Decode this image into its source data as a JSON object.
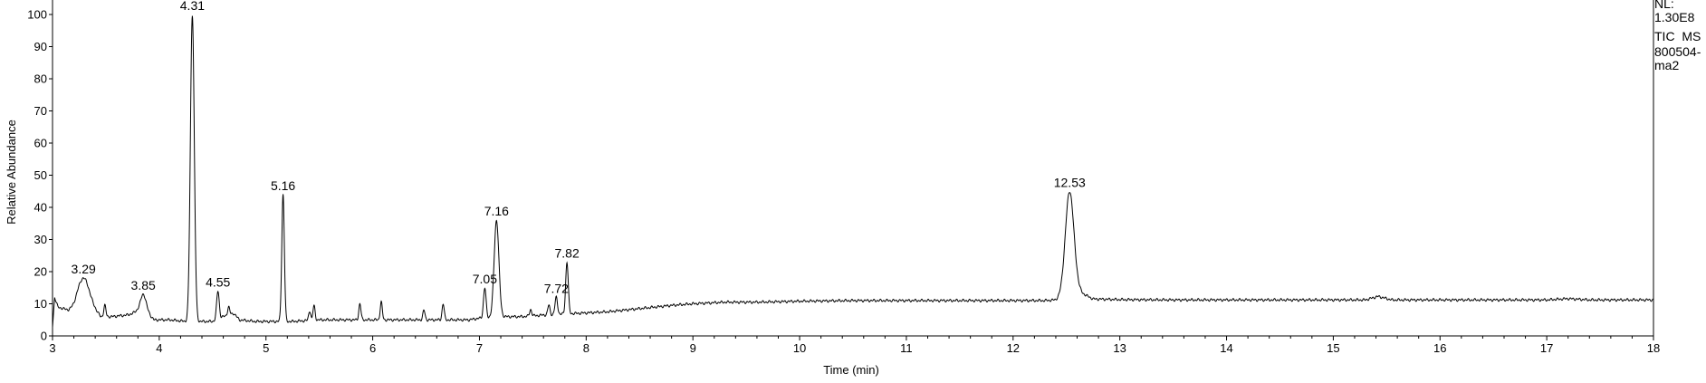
{
  "chart_data": {
    "type": "line",
    "xlabel": "Time (min)",
    "ylabel": "Relative Abundance",
    "xlim": [
      3,
      18
    ],
    "ylim": [
      0,
      100
    ],
    "x_ticks": [
      "3",
      "4",
      "5",
      "6",
      "7",
      "8",
      "9",
      "10",
      "11",
      "12",
      "13",
      "14",
      "15",
      "16",
      "17",
      "18"
    ],
    "y_ticks": [
      "0",
      "10",
      "20",
      "30",
      "40",
      "50",
      "60",
      "70",
      "80",
      "90",
      "100"
    ],
    "info_lines": [
      "NL:",
      "1.30E8",
      "TIC  MS",
      "800504-",
      "ma2"
    ],
    "baseline": [
      [
        3.0,
        3
      ],
      [
        3.02,
        12
      ],
      [
        3.05,
        9
      ],
      [
        3.1,
        8.5
      ],
      [
        3.15,
        8
      ],
      [
        3.2,
        8.5
      ],
      [
        3.25,
        10
      ],
      [
        3.32,
        10
      ],
      [
        3.4,
        8
      ],
      [
        3.45,
        6
      ],
      [
        3.55,
        6
      ],
      [
        3.7,
        6.5
      ],
      [
        3.75,
        7
      ],
      [
        3.8,
        8
      ],
      [
        3.9,
        7
      ],
      [
        3.95,
        5
      ],
      [
        4.1,
        5
      ],
      [
        4.25,
        4.5
      ],
      [
        4.4,
        4.5
      ],
      [
        4.5,
        4.5
      ],
      [
        4.6,
        6
      ],
      [
        4.7,
        7
      ],
      [
        4.75,
        5
      ],
      [
        4.9,
        4.5
      ],
      [
        5.05,
        4.5
      ],
      [
        5.25,
        4.5
      ],
      [
        5.5,
        5
      ],
      [
        5.8,
        5
      ],
      [
        6.1,
        5
      ],
      [
        6.4,
        5
      ],
      [
        6.7,
        5
      ],
      [
        6.9,
        5
      ],
      [
        7.0,
        5.5
      ],
      [
        7.2,
        6
      ],
      [
        7.4,
        6
      ],
      [
        7.6,
        6.5
      ],
      [
        7.9,
        7
      ],
      [
        8.2,
        7.5
      ],
      [
        8.5,
        8.5
      ],
      [
        8.8,
        9.5
      ],
      [
        9.0,
        10
      ],
      [
        9.3,
        10.5
      ],
      [
        9.6,
        10.5
      ],
      [
        10.0,
        10.8
      ],
      [
        10.5,
        11
      ],
      [
        11.0,
        11
      ],
      [
        11.5,
        11
      ],
      [
        12.0,
        11
      ],
      [
        12.3,
        11
      ],
      [
        12.4,
        11.2
      ],
      [
        12.6,
        14
      ],
      [
        12.75,
        11.5
      ],
      [
        13.0,
        11.3
      ],
      [
        13.5,
        11.2
      ],
      [
        14.0,
        11.2
      ],
      [
        14.5,
        11.2
      ],
      [
        15.0,
        11.2
      ],
      [
        15.3,
        11.2
      ],
      [
        15.42,
        12.3
      ],
      [
        15.55,
        11.2
      ],
      [
        16.0,
        11.2
      ],
      [
        16.5,
        11.2
      ],
      [
        17.0,
        11.2
      ],
      [
        17.2,
        11.6
      ],
      [
        17.4,
        11.2
      ],
      [
        18.0,
        11.2
      ]
    ],
    "peaks": [
      {
        "rt": 3.29,
        "height": 18,
        "width": 0.05
      },
      {
        "rt": 3.85,
        "height": 13,
        "width": 0.025
      },
      {
        "rt": 4.31,
        "height": 100,
        "width": 0.018
      },
      {
        "rt": 4.55,
        "height": 14,
        "width": 0.012
      },
      {
        "rt": 5.16,
        "height": 44,
        "width": 0.012
      },
      {
        "rt": 7.05,
        "height": 15,
        "width": 0.012
      },
      {
        "rt": 7.16,
        "height": 36,
        "width": 0.022
      },
      {
        "rt": 7.72,
        "height": 12,
        "width": 0.012
      },
      {
        "rt": 7.82,
        "height": 23,
        "width": 0.012
      },
      {
        "rt": 12.53,
        "height": 45,
        "width": 0.04
      }
    ],
    "peak_labels": [
      {
        "text": "3.29",
        "x": 3.29,
        "y": 18
      },
      {
        "text": "3.85",
        "x": 3.85,
        "y": 13
      },
      {
        "text": "4.31",
        "x": 4.31,
        "y": 100
      },
      {
        "text": "4.55",
        "x": 4.55,
        "y": 14
      },
      {
        "text": "5.16",
        "x": 5.16,
        "y": 44
      },
      {
        "text": "7.05",
        "x": 7.05,
        "y": 15
      },
      {
        "text": "7.16",
        "x": 7.16,
        "y": 36
      },
      {
        "text": "7.72",
        "x": 7.72,
        "y": 12
      },
      {
        "text": "7.82",
        "x": 7.82,
        "y": 23
      },
      {
        "text": "12.53",
        "x": 12.53,
        "y": 45
      }
    ],
    "minor_peaks": [
      {
        "rt": 3.49,
        "height": 3.5
      },
      {
        "rt": 4.65,
        "height": 2.5
      },
      {
        "rt": 5.41,
        "height": 3
      },
      {
        "rt": 5.45,
        "height": 4.5
      },
      {
        "rt": 5.88,
        "height": 5
      },
      {
        "rt": 6.08,
        "height": 5.5
      },
      {
        "rt": 6.48,
        "height": 3
      },
      {
        "rt": 6.66,
        "height": 5
      },
      {
        "rt": 7.48,
        "height": 2
      },
      {
        "rt": 7.65,
        "height": 3
      }
    ]
  }
}
